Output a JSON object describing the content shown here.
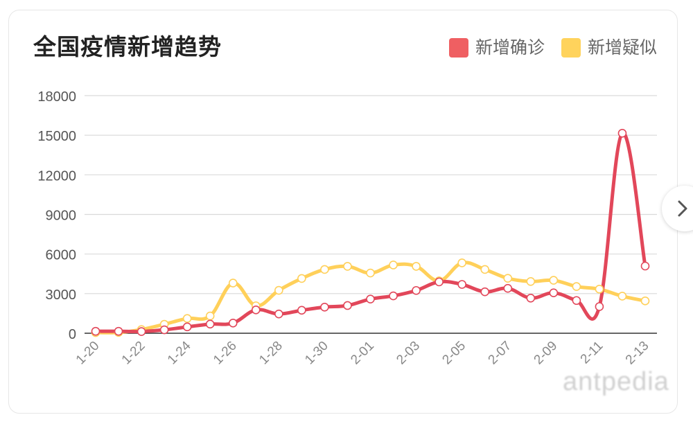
{
  "card": {
    "title": "全国疫情新增趋势",
    "legend": [
      {
        "label": "新增确诊",
        "color": "#ef5f62"
      },
      {
        "label": "新增疑似",
        "color": "#ffd35c"
      }
    ],
    "nav_icon": "chevron-right-icon",
    "watermark": "antpedia"
  },
  "colors": {
    "confirmed": "#e2475a",
    "suspected": "#ffd05a",
    "grid": "#d9d9d9",
    "axis": "#333333",
    "tick_text": "#888888",
    "ylabel_text": "#555555"
  },
  "chart_data": {
    "type": "line",
    "title": "全国疫情新增趋势",
    "xlabel": "",
    "ylabel": "",
    "ylim": [
      0,
      18000
    ],
    "yticks": [
      0,
      3000,
      6000,
      9000,
      12000,
      15000,
      18000
    ],
    "x": [
      "1-20",
      "1-21",
      "1-22",
      "1-23",
      "1-24",
      "1-25",
      "1-26",
      "1-27",
      "1-28",
      "1-29",
      "1-30",
      "1-31",
      "2-01",
      "2-02",
      "2-03",
      "2-04",
      "2-05",
      "2-06",
      "2-07",
      "2-08",
      "2-09",
      "2-10",
      "2-11",
      "2-12",
      "2-13"
    ],
    "xtick_labels": [
      "1-20",
      "1-22",
      "1-24",
      "1-26",
      "1-28",
      "1-30",
      "2-01",
      "2-03",
      "2-05",
      "2-07",
      "2-09",
      "2-11",
      "2-13"
    ],
    "series": [
      {
        "name": "新增确诊",
        "values": [
          150,
          150,
          130,
          260,
          480,
          690,
          770,
          1770,
          1460,
          1740,
          1980,
          2100,
          2590,
          2830,
          3240,
          3890,
          3700,
          3140,
          3400,
          2660,
          3060,
          2480,
          2020,
          15150,
          5090
        ]
      },
      {
        "name": "新增疑似",
        "values": [
          50,
          60,
          280,
          680,
          1120,
          1310,
          3800,
          2080,
          3250,
          4150,
          4830,
          5070,
          4560,
          5170,
          5070,
          3970,
          5330,
          4830,
          4160,
          3920,
          4010,
          3540,
          3340,
          2810,
          2450
        ]
      }
    ],
    "grid": true,
    "legend_position": "top-right"
  }
}
